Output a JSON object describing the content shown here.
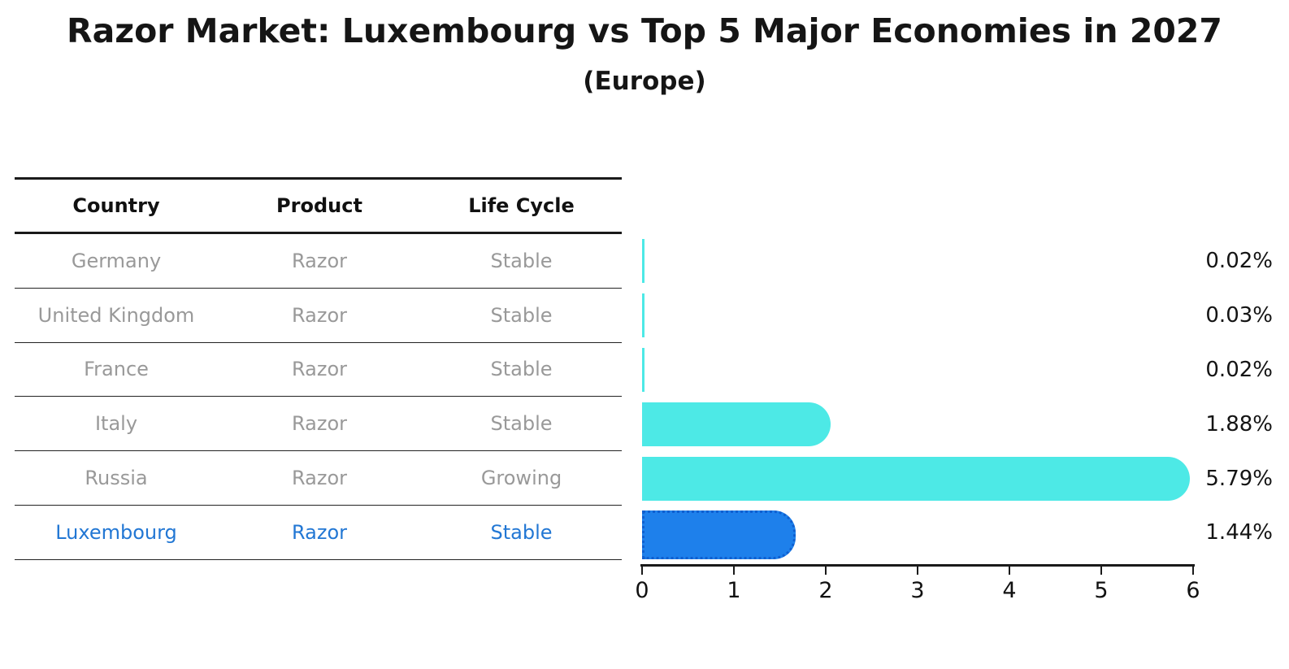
{
  "chart_data": {
    "type": "bar",
    "orientation": "horizontal",
    "title": "Razor Market: Luxembourg vs Top 5 Major Economies in 2027",
    "subtitle": "(Europe)",
    "unit": "%",
    "xlim": [
      0,
      6
    ],
    "x_ticks": [
      "0",
      "1",
      "2",
      "3",
      "4",
      "5",
      "6"
    ],
    "grid": false,
    "legend": false,
    "rows": [
      {
        "country": "Germany",
        "product": "Razor",
        "life_cycle": "Stable",
        "value": 0.02,
        "value_label": "0.02%",
        "highlighted": false
      },
      {
        "country": "United Kingdom",
        "product": "Razor",
        "life_cycle": "Stable",
        "value": 0.03,
        "value_label": "0.03%",
        "highlighted": false
      },
      {
        "country": "France",
        "product": "Razor",
        "life_cycle": "Stable",
        "value": 0.02,
        "value_label": "0.02%",
        "highlighted": false
      },
      {
        "country": "Italy",
        "product": "Razor",
        "life_cycle": "Stable",
        "value": 1.88,
        "value_label": "1.88%",
        "highlighted": false
      },
      {
        "country": "Russia",
        "product": "Razor",
        "life_cycle": "Growing",
        "value": 5.79,
        "value_label": "5.79%",
        "highlighted": false
      },
      {
        "country": "Luxembourg",
        "product": "Razor",
        "life_cycle": "Stable",
        "value": 1.44,
        "value_label": "1.44%",
        "highlighted": true
      }
    ],
    "colors": {
      "bar": "#4de9e6",
      "highlight_bar": "#1e80eb",
      "highlight_bar_border": "#0f5fd0",
      "highlight_row_text": "#2277d4",
      "row_text": "#999999",
      "header_text": "#111111",
      "axis": "#1a1a1a"
    }
  },
  "table": {
    "headers": [
      "Country",
      "Product",
      "Life Cycle"
    ]
  }
}
